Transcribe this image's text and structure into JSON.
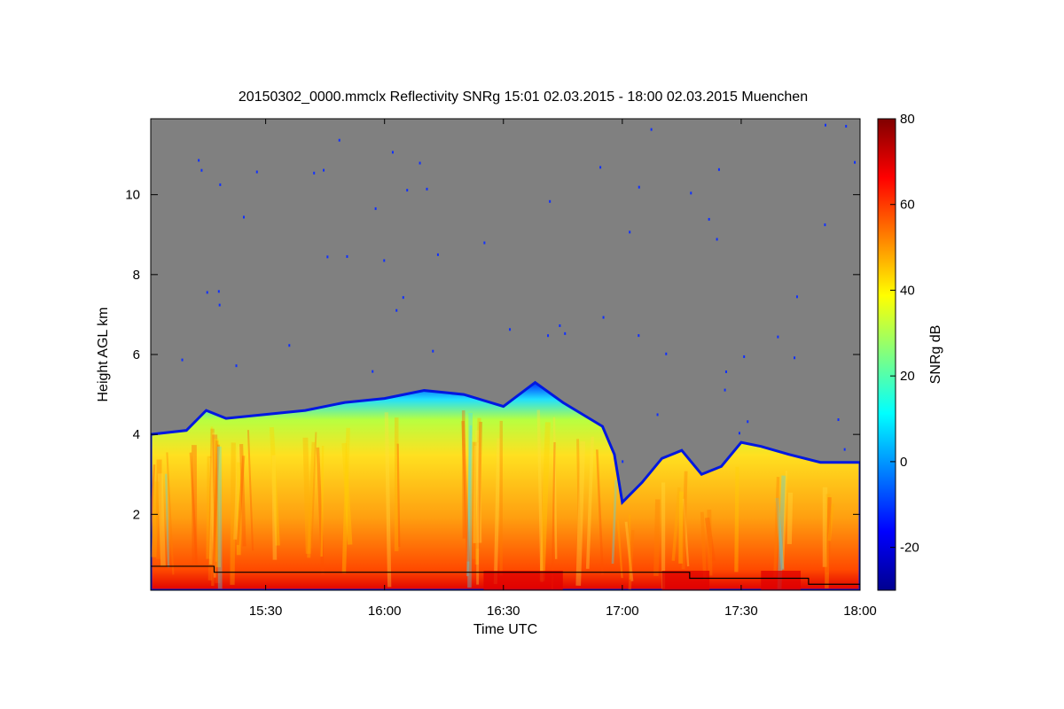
{
  "chart_data": {
    "type": "heatmap",
    "title": "20150302_0000.mmclx Reflectivity SNRg   15:01 02.03.2015 - 18:00 02.03.2015 Muenchen",
    "xlabel": "Time UTC",
    "ylabel": "Height AGL km",
    "colorbar_label": "SNRg dB",
    "xlim": [
      "15:01",
      "18:00"
    ],
    "ylim": [
      0.1,
      11.9
    ],
    "x_ticks": [
      "15:30",
      "16:00",
      "16:30",
      "17:00",
      "17:30",
      "18:00"
    ],
    "y_ticks": [
      "2",
      "4",
      "6",
      "8",
      "10"
    ],
    "colorbar_range": [
      -30,
      80
    ],
    "colorbar_ticks": [
      "-20",
      "0",
      "20",
      "40",
      "60",
      "80"
    ],
    "no_data_color": "#808080",
    "colormap": "jet",
    "cloud_top_km": [
      {
        "time": "15:01",
        "height": 4.0
      },
      {
        "time": "15:10",
        "height": 4.1
      },
      {
        "time": "15:15",
        "height": 4.6
      },
      {
        "time": "15:20",
        "height": 4.4
      },
      {
        "time": "15:30",
        "height": 4.5
      },
      {
        "time": "15:40",
        "height": 4.6
      },
      {
        "time": "15:50",
        "height": 4.8
      },
      {
        "time": "16:00",
        "height": 4.9
      },
      {
        "time": "16:10",
        "height": 5.1
      },
      {
        "time": "16:20",
        "height": 5.0
      },
      {
        "time": "16:30",
        "height": 4.7
      },
      {
        "time": "16:38",
        "height": 5.3
      },
      {
        "time": "16:45",
        "height": 4.8
      },
      {
        "time": "16:55",
        "height": 4.2
      },
      {
        "time": "16:58",
        "height": 3.5
      },
      {
        "time": "17:00",
        "height": 2.3
      },
      {
        "time": "17:05",
        "height": 2.8
      },
      {
        "time": "17:10",
        "height": 3.4
      },
      {
        "time": "17:15",
        "height": 3.6
      },
      {
        "time": "17:20",
        "height": 3.0
      },
      {
        "time": "17:25",
        "height": 3.2
      },
      {
        "time": "17:30",
        "height": 3.8
      },
      {
        "time": "17:35",
        "height": 3.7
      },
      {
        "time": "17:42",
        "height": 3.5
      },
      {
        "time": "17:50",
        "height": 3.3
      },
      {
        "time": "18:00",
        "height": 3.3
      }
    ],
    "boundary_line_km": [
      {
        "time": "15:01",
        "height": 0.7
      },
      {
        "time": "15:17",
        "height": 0.7
      },
      {
        "time": "15:17",
        "height": 0.55
      },
      {
        "time": "17:17",
        "height": 0.55
      },
      {
        "time": "17:17",
        "height": 0.4
      },
      {
        "time": "17:47",
        "height": 0.4
      },
      {
        "time": "17:47",
        "height": 0.25
      },
      {
        "time": "18:00",
        "height": 0.25
      }
    ]
  }
}
